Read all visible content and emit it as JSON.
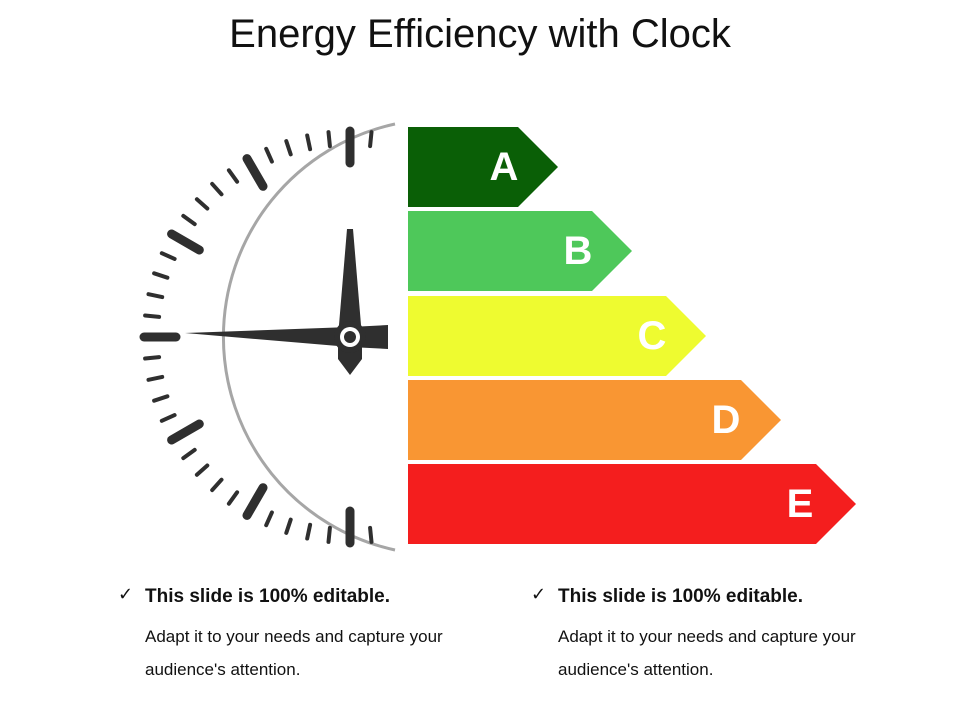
{
  "title": "Energy Efficiency with Clock",
  "rating_bars": [
    {
      "letter": "A",
      "color": "#0a5f06"
    },
    {
      "letter": "B",
      "color": "#4ec85a"
    },
    {
      "letter": "C",
      "color": "#eefb30"
    },
    {
      "letter": "D",
      "color": "#f99633"
    },
    {
      "letter": "E",
      "color": "#f41e1e"
    }
  ],
  "notes": [
    {
      "check": "✓",
      "headline": "This slide is 100% editable.",
      "body": "Adapt it to your needs and capture your audience's attention."
    },
    {
      "check": "✓",
      "headline": "This slide is 100% editable.",
      "body": "Adapt it to your needs and capture your audience's attention."
    }
  ],
  "colors": {
    "clock_rim": "#a6a6a6",
    "clock_marks": "#2f2f2f"
  }
}
